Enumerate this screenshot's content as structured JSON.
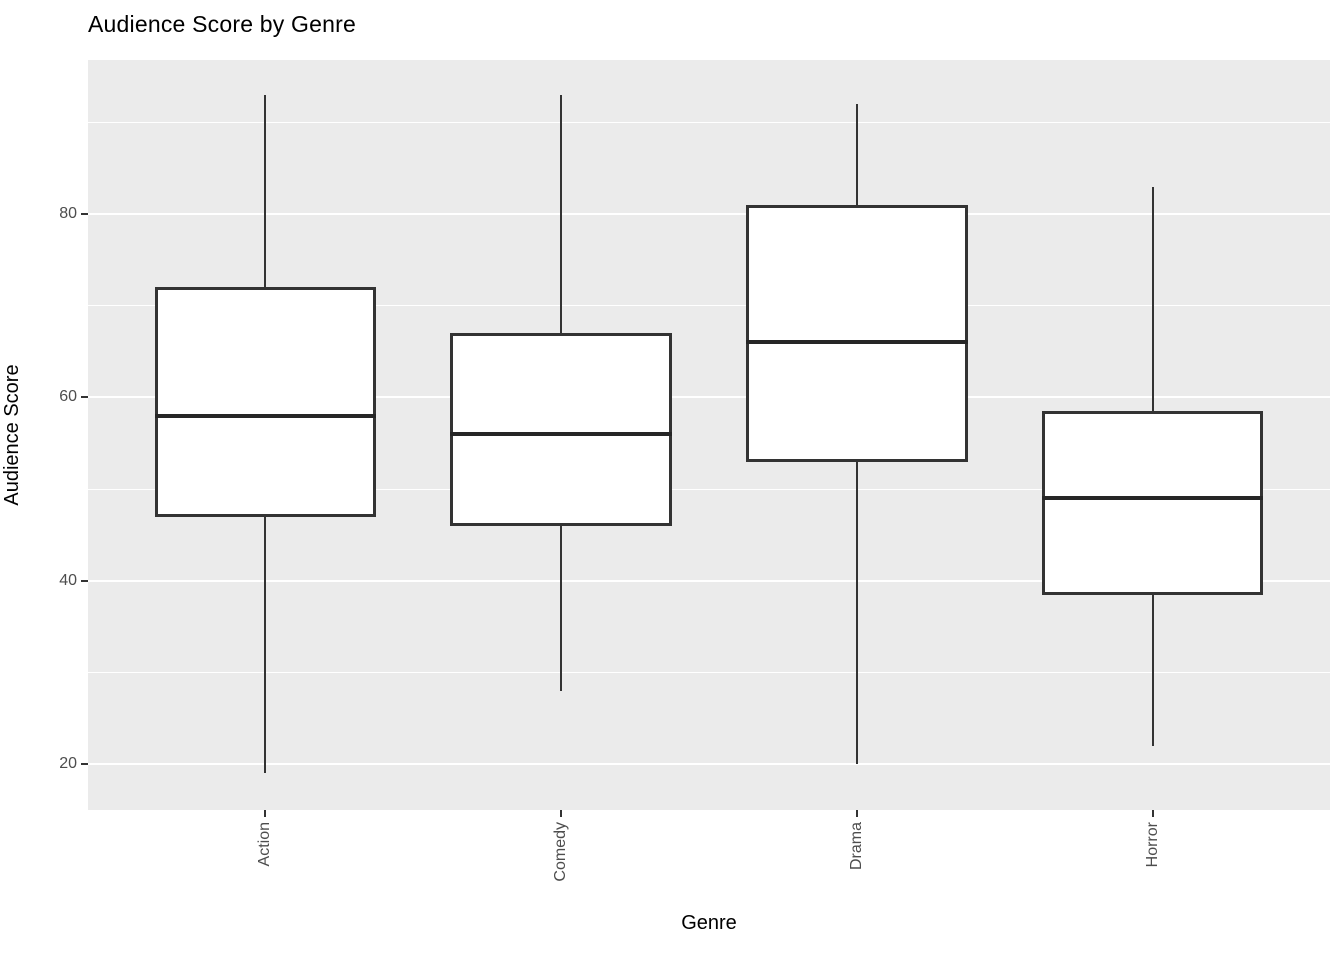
{
  "title": "Audience Score by Genre",
  "chart_data": {
    "type": "boxplot",
    "title": "Audience Score by Genre",
    "xlabel": "Genre",
    "ylabel": "Audience Score",
    "categories": [
      "Action",
      "Comedy",
      "Drama",
      "Horror"
    ],
    "series": [
      {
        "name": "Action",
        "min": 19,
        "q1": 47,
        "median": 58,
        "q3": 72,
        "max": 93
      },
      {
        "name": "Comedy",
        "min": 28,
        "q1": 46,
        "median": 56,
        "q3": 67,
        "max": 93
      },
      {
        "name": "Drama",
        "min": 20,
        "q1": 53,
        "median": 66,
        "q3": 81,
        "max": 92
      },
      {
        "name": "Horror",
        "min": 22,
        "q1": 38.5,
        "median": 49,
        "q3": 58.5,
        "max": 83
      }
    ],
    "ylim": [
      15.0,
      96.8
    ],
    "yticks": [
      20,
      40,
      60,
      80
    ],
    "yticks_minor": [
      30,
      50,
      70,
      90
    ],
    "grid": true,
    "legend": "none",
    "x_label_rotation_deg": 90,
    "style": {
      "panel_bg": "#EBEBEB",
      "grid_color": "#FFFFFF",
      "box_stroke": "#333333",
      "box_fill": "#FFFFFF",
      "median_color": "#262626",
      "tick_mark_color": "#333333",
      "tick_label_color": "#4D4D4D",
      "title_color": "#000000"
    }
  }
}
